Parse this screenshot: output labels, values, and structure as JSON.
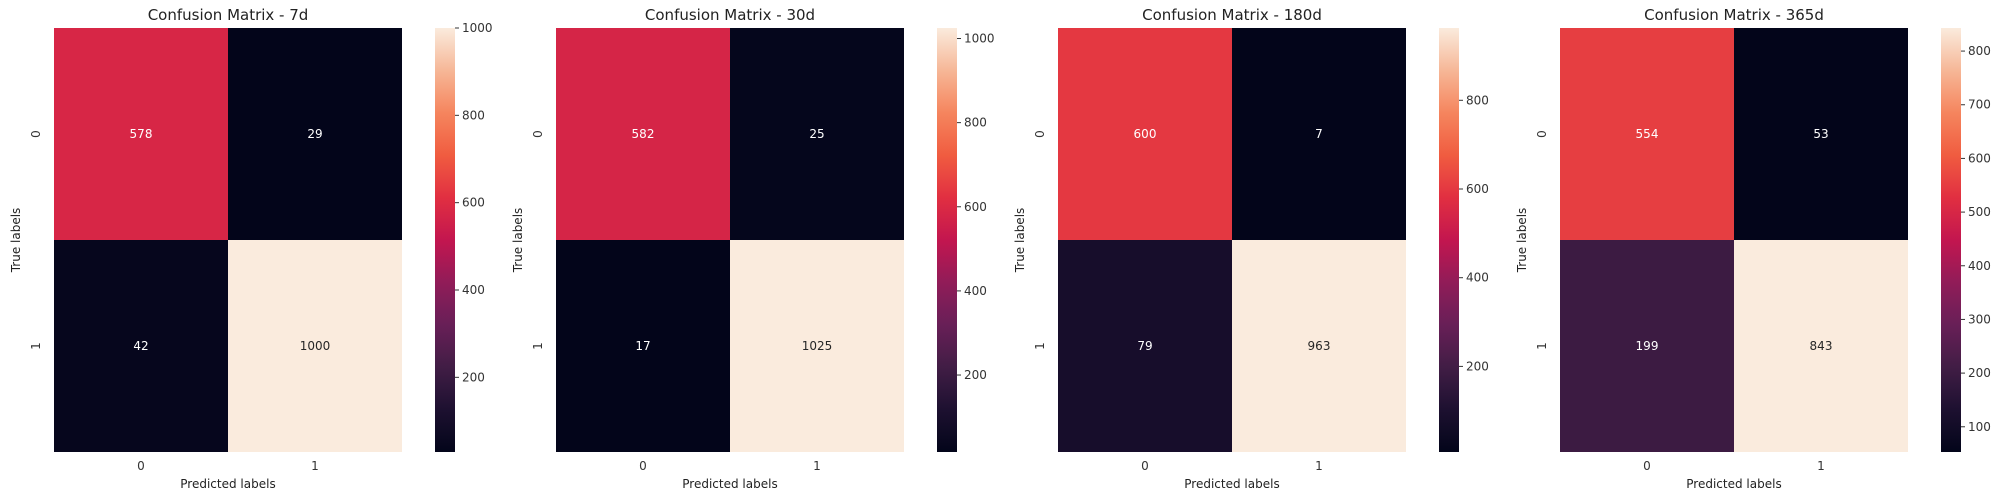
{
  "chart_data": [
    {
      "type": "heatmap",
      "title": "Confusion Matrix - 7d",
      "xlabel": "Predicted labels",
      "ylabel": "True labels",
      "x_categories": [
        "0",
        "1"
      ],
      "y_categories": [
        "0",
        "1"
      ],
      "values": [
        [
          578,
          29
        ],
        [
          42,
          1000
        ]
      ],
      "colorbar": {
        "range": [
          29,
          1000
        ],
        "ticks": [
          200,
          400,
          600,
          800,
          1000
        ]
      }
    },
    {
      "type": "heatmap",
      "title": "Confusion Matrix - 30d",
      "xlabel": "Predicted labels",
      "ylabel": "True labels",
      "x_categories": [
        "0",
        "1"
      ],
      "y_categories": [
        "0",
        "1"
      ],
      "values": [
        [
          582,
          25
        ],
        [
          17,
          1025
        ]
      ],
      "colorbar": {
        "range": [
          17,
          1025
        ],
        "ticks": [
          200,
          400,
          600,
          800,
          1000
        ]
      }
    },
    {
      "type": "heatmap",
      "title": "Confusion Matrix - 180d",
      "xlabel": "Predicted labels",
      "ylabel": "True labels",
      "x_categories": [
        "0",
        "1"
      ],
      "y_categories": [
        "0",
        "1"
      ],
      "values": [
        [
          600,
          7
        ],
        [
          79,
          963
        ]
      ],
      "colorbar": {
        "range": [
          7,
          963
        ],
        "ticks": [
          200,
          400,
          600,
          800
        ]
      }
    },
    {
      "type": "heatmap",
      "title": "Confusion Matrix - 365d",
      "xlabel": "Predicted labels",
      "ylabel": "True labels",
      "x_categories": [
        "0",
        "1"
      ],
      "y_categories": [
        "0",
        "1"
      ],
      "values": [
        [
          554,
          53
        ],
        [
          199,
          843
        ]
      ],
      "colorbar": {
        "range": [
          53,
          843
        ],
        "ticks": [
          100,
          200,
          300,
          400,
          500,
          600,
          700,
          800
        ]
      }
    }
  ]
}
